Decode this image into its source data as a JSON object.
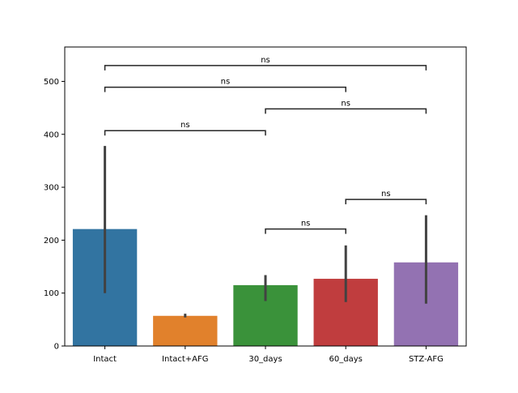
{
  "chart_data": {
    "type": "bar",
    "categories": [
      "Intact",
      "Intact+AFG",
      "30_days",
      "60_days",
      "STZ-AFG"
    ],
    "values": [
      221,
      57,
      115,
      127,
      158
    ],
    "error_low": [
      100,
      54,
      85,
      83,
      80
    ],
    "error_high": [
      378,
      61,
      134,
      190,
      247
    ],
    "colors": [
      "#3274a1",
      "#e1812c",
      "#3a923a",
      "#c03d3e",
      "#9372b2"
    ],
    "title": "",
    "xlabel": "",
    "ylabel": "",
    "ylim": [
      0,
      565
    ],
    "yticks": [
      0,
      100,
      200,
      300,
      400,
      500
    ],
    "grid": false,
    "annotations": [
      {
        "from": "Intact",
        "to": "STZ-AFG",
        "y": 530,
        "label": "ns"
      },
      {
        "from": "Intact",
        "to": "60_days",
        "y": 489,
        "label": "ns"
      },
      {
        "from": "30_days",
        "to": "STZ-AFG",
        "y": 448,
        "label": "ns"
      },
      {
        "from": "Intact",
        "to": "30_days",
        "y": 407,
        "label": "ns"
      },
      {
        "from": "60_days",
        "to": "STZ-AFG",
        "y": 277,
        "label": "ns"
      },
      {
        "from": "30_days",
        "to": "60_days",
        "y": 221,
        "label": "ns"
      }
    ]
  }
}
